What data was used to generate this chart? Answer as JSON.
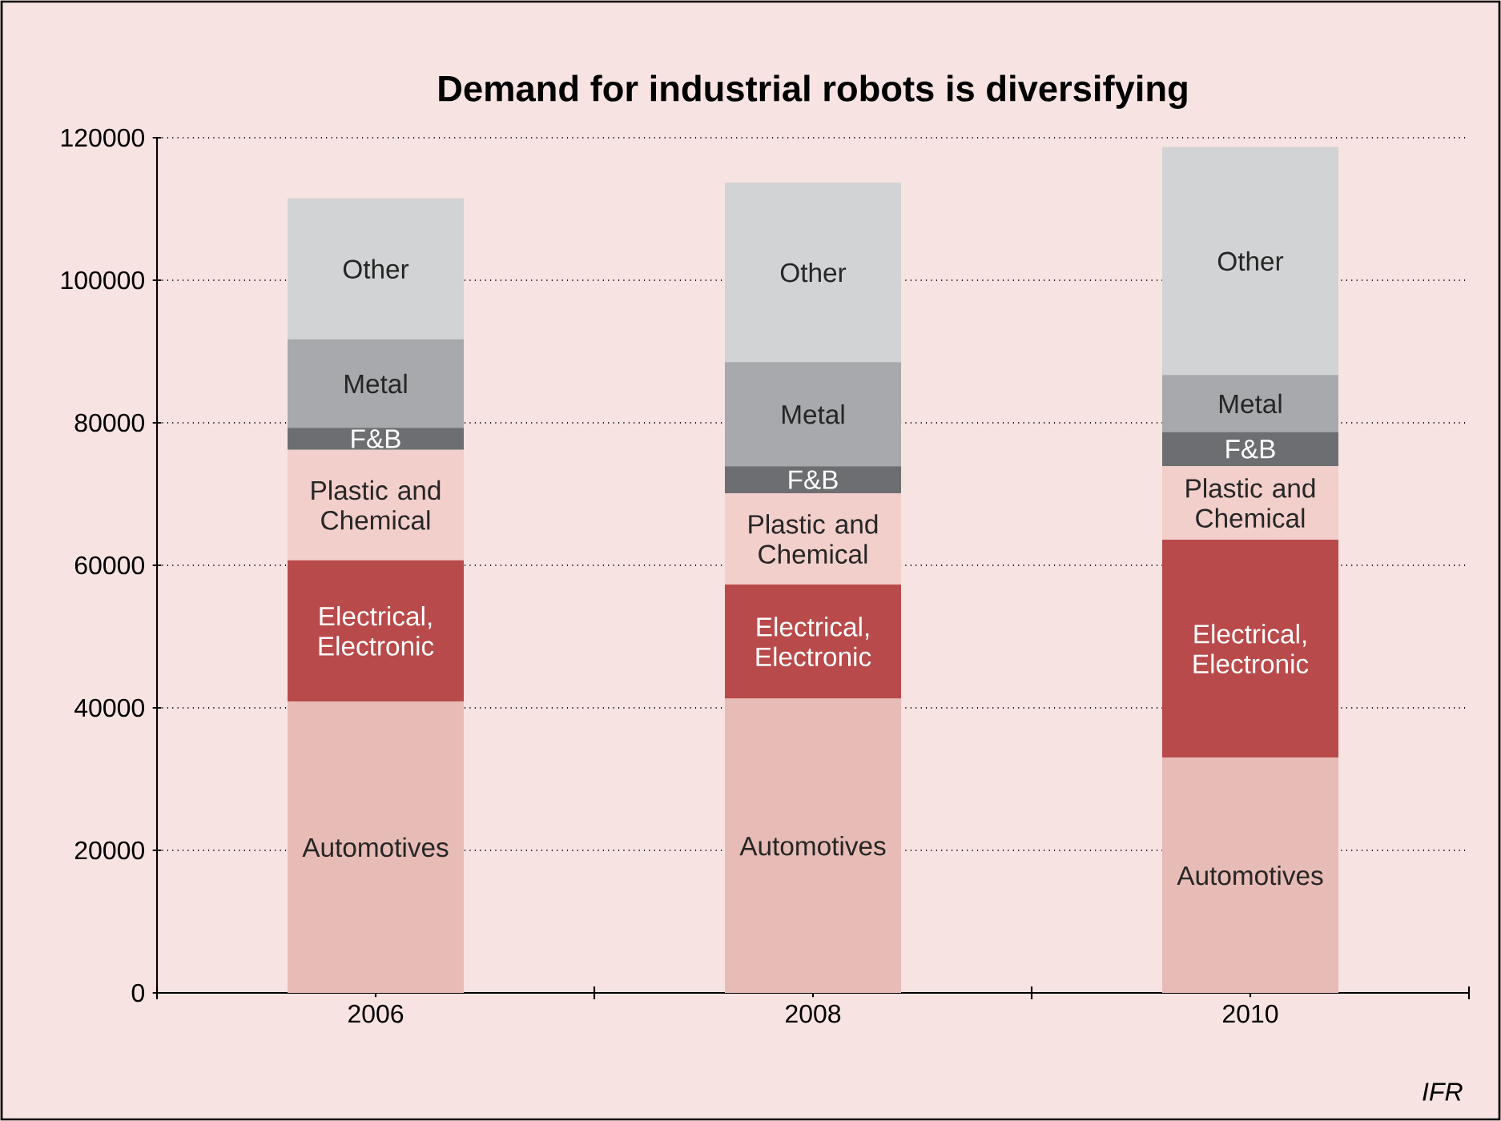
{
  "chart_data": {
    "type": "bar",
    "title": "Demand for industrial robots is diversifying",
    "stacked": true,
    "categories": [
      "2006",
      "2008",
      "2010"
    ],
    "series": [
      {
        "name": "Automotives",
        "color": "#e8bcb6",
        "values": [
          40900,
          41300,
          33000
        ]
      },
      {
        "name": "Electrical, Electronic",
        "color": "#b94a4b",
        "values": [
          19800,
          16000,
          30600
        ]
      },
      {
        "name": "Plastic and Chemical",
        "color": "#f2cfcb",
        "values": [
          15500,
          12800,
          10300
        ]
      },
      {
        "name": "F&B",
        "color": "#6d6e71",
        "values": [
          3100,
          3800,
          4800
        ]
      },
      {
        "name": "Metal",
        "color": "#a7a9ac",
        "values": [
          12400,
          14600,
          8000
        ]
      },
      {
        "name": "Other",
        "color": "#d1d3d4",
        "values": [
          19800,
          25200,
          32000
        ]
      }
    ],
    "ylim": [
      0,
      120000
    ],
    "yticks": [
      0,
      20000,
      40000,
      60000,
      80000,
      100000,
      120000
    ],
    "grid": "y",
    "annotations": [
      "IFR"
    ]
  }
}
